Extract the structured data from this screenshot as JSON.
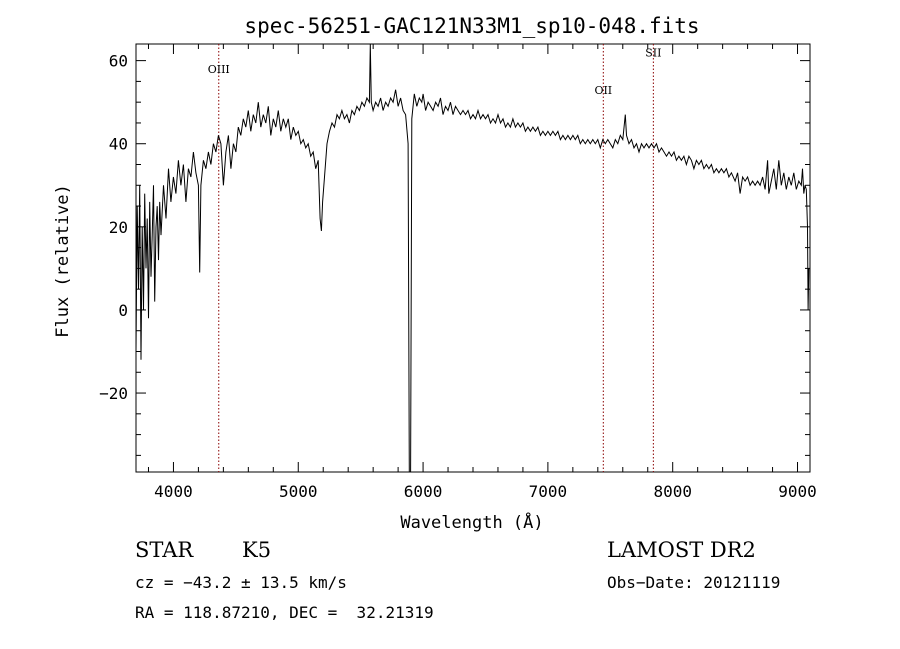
{
  "chart_data": {
    "type": "line",
    "title": "spec-56251-GAC121N33M1_sp10-048.fits",
    "xlabel": "Wavelength (Å)",
    "ylabel": "Flux (relative)",
    "xlim": [
      3700,
      9100
    ],
    "ylim": [
      -39,
      64
    ],
    "xticks": [
      4000,
      5000,
      6000,
      7000,
      8000,
      9000
    ],
    "xtick_labels": [
      "4000",
      "5000",
      "6000",
      "7000",
      "8000",
      "9000"
    ],
    "yticks": [
      -20,
      0,
      20,
      40,
      60
    ],
    "ytick_labels": [
      "−20",
      "0",
      "20",
      "40",
      "60"
    ],
    "grid": false,
    "colors": {
      "spectrum": "#000000",
      "lines": "#8b0000"
    },
    "lines": [
      {
        "label": "OIII",
        "x": 4363,
        "label_y": 57
      },
      {
        "label": "OII",
        "x": 7444,
        "label_y": 52
      },
      {
        "label": "SII",
        "x": 7845,
        "label_y": 61
      }
    ],
    "series": [
      {
        "values": [
          [
            3700,
            -10
          ],
          [
            3710,
            25
          ],
          [
            3720,
            5
          ],
          [
            3730,
            30
          ],
          [
            3740,
            -12
          ],
          [
            3750,
            20
          ],
          [
            3760,
            0
          ],
          [
            3770,
            28
          ],
          [
            3780,
            10
          ],
          [
            3790,
            22
          ],
          [
            3800,
            -2
          ],
          [
            3810,
            26
          ],
          [
            3820,
            8
          ],
          [
            3830,
            18
          ],
          [
            3840,
            30
          ],
          [
            3850,
            2
          ],
          [
            3860,
            20
          ],
          [
            3870,
            25
          ],
          [
            3880,
            12
          ],
          [
            3890,
            26
          ],
          [
            3900,
            18
          ],
          [
            3920,
            30
          ],
          [
            3940,
            22
          ],
          [
            3960,
            34
          ],
          [
            3980,
            26
          ],
          [
            4000,
            32
          ],
          [
            4020,
            28
          ],
          [
            4040,
            36
          ],
          [
            4060,
            30
          ],
          [
            4080,
            35
          ],
          [
            4100,
            26
          ],
          [
            4120,
            34
          ],
          [
            4140,
            32
          ],
          [
            4160,
            38
          ],
          [
            4180,
            33
          ],
          [
            4200,
            30
          ],
          [
            4210,
            9
          ],
          [
            4220,
            30
          ],
          [
            4240,
            36
          ],
          [
            4260,
            34
          ],
          [
            4280,
            38
          ],
          [
            4300,
            35
          ],
          [
            4320,
            40
          ],
          [
            4340,
            38
          ],
          [
            4360,
            42
          ],
          [
            4380,
            40
          ],
          [
            4400,
            30
          ],
          [
            4420,
            38
          ],
          [
            4440,
            42
          ],
          [
            4460,
            34
          ],
          [
            4480,
            40
          ],
          [
            4500,
            38
          ],
          [
            4520,
            44
          ],
          [
            4540,
            42
          ],
          [
            4560,
            46
          ],
          [
            4580,
            44
          ],
          [
            4600,
            48
          ],
          [
            4620,
            43
          ],
          [
            4640,
            47
          ],
          [
            4660,
            45
          ],
          [
            4680,
            50
          ],
          [
            4700,
            44
          ],
          [
            4720,
            47
          ],
          [
            4740,
            45
          ],
          [
            4760,
            49
          ],
          [
            4780,
            42
          ],
          [
            4800,
            46
          ],
          [
            4820,
            44
          ],
          [
            4840,
            48
          ],
          [
            4860,
            43
          ],
          [
            4880,
            46
          ],
          [
            4900,
            44
          ],
          [
            4920,
            46
          ],
          [
            4940,
            41
          ],
          [
            4960,
            44
          ],
          [
            4980,
            42
          ],
          [
            5000,
            43
          ],
          [
            5020,
            40
          ],
          [
            5040,
            41
          ],
          [
            5060,
            39
          ],
          [
            5080,
            40
          ],
          [
            5100,
            37
          ],
          [
            5120,
            38
          ],
          [
            5140,
            34
          ],
          [
            5160,
            36
          ],
          [
            5175,
            22
          ],
          [
            5185,
            19
          ],
          [
            5195,
            26
          ],
          [
            5210,
            32
          ],
          [
            5230,
            40
          ],
          [
            5250,
            43
          ],
          [
            5270,
            45
          ],
          [
            5290,
            44
          ],
          [
            5310,
            47
          ],
          [
            5330,
            46
          ],
          [
            5350,
            48
          ],
          [
            5370,
            46
          ],
          [
            5390,
            47
          ],
          [
            5410,
            45
          ],
          [
            5430,
            48
          ],
          [
            5450,
            47
          ],
          [
            5470,
            49
          ],
          [
            5490,
            48
          ],
          [
            5510,
            50
          ],
          [
            5530,
            49
          ],
          [
            5550,
            51
          ],
          [
            5570,
            50
          ],
          [
            5577,
            64
          ],
          [
            5585,
            50
          ],
          [
            5600,
            48
          ],
          [
            5620,
            50
          ],
          [
            5640,
            49
          ],
          [
            5660,
            51
          ],
          [
            5680,
            48
          ],
          [
            5700,
            50
          ],
          [
            5720,
            49
          ],
          [
            5740,
            51
          ],
          [
            5760,
            50
          ],
          [
            5780,
            53
          ],
          [
            5800,
            49
          ],
          [
            5820,
            51
          ],
          [
            5840,
            48
          ],
          [
            5860,
            47
          ],
          [
            5880,
            40
          ],
          [
            5890,
            -39
          ],
          [
            5900,
            -39
          ],
          [
            5910,
            46
          ],
          [
            5930,
            52
          ],
          [
            5950,
            49
          ],
          [
            5970,
            51
          ],
          [
            5990,
            50
          ],
          [
            6000,
            52
          ],
          [
            6020,
            48
          ],
          [
            6040,
            50
          ],
          [
            6060,
            49
          ],
          [
            6080,
            48
          ],
          [
            6100,
            50
          ],
          [
            6120,
            49
          ],
          [
            6140,
            51
          ],
          [
            6160,
            47
          ],
          [
            6180,
            49
          ],
          [
            6200,
            48
          ],
          [
            6220,
            50
          ],
          [
            6240,
            47
          ],
          [
            6260,
            49
          ],
          [
            6280,
            48
          ],
          [
            6300,
            47
          ],
          [
            6320,
            48
          ],
          [
            6340,
            47
          ],
          [
            6360,
            48
          ],
          [
            6380,
            46
          ],
          [
            6400,
            47
          ],
          [
            6420,
            46
          ],
          [
            6440,
            48
          ],
          [
            6460,
            46
          ],
          [
            6480,
            47
          ],
          [
            6500,
            46
          ],
          [
            6520,
            47
          ],
          [
            6540,
            45
          ],
          [
            6560,
            46
          ],
          [
            6580,
            45
          ],
          [
            6600,
            47
          ],
          [
            6620,
            45
          ],
          [
            6640,
            46
          ],
          [
            6660,
            44
          ],
          [
            6680,
            45
          ],
          [
            6700,
            44
          ],
          [
            6720,
            46
          ],
          [
            6740,
            44
          ],
          [
            6760,
            45
          ],
          [
            6780,
            44
          ],
          [
            6800,
            45
          ],
          [
            6820,
            43
          ],
          [
            6840,
            44
          ],
          [
            6860,
            43
          ],
          [
            6880,
            44
          ],
          [
            6900,
            43
          ],
          [
            6920,
            44
          ],
          [
            6940,
            42
          ],
          [
            6960,
            43
          ],
          [
            6980,
            42
          ],
          [
            7000,
            43
          ],
          [
            7020,
            42
          ],
          [
            7040,
            43
          ],
          [
            7060,
            42
          ],
          [
            7080,
            43
          ],
          [
            7100,
            41
          ],
          [
            7120,
            42
          ],
          [
            7140,
            41
          ],
          [
            7160,
            42
          ],
          [
            7180,
            41
          ],
          [
            7200,
            42
          ],
          [
            7220,
            41
          ],
          [
            7240,
            42
          ],
          [
            7260,
            40
          ],
          [
            7280,
            41
          ],
          [
            7300,
            40
          ],
          [
            7320,
            41
          ],
          [
            7340,
            40
          ],
          [
            7360,
            41
          ],
          [
            7380,
            40
          ],
          [
            7400,
            41
          ],
          [
            7420,
            39
          ],
          [
            7440,
            41
          ],
          [
            7460,
            40
          ],
          [
            7480,
            41
          ],
          [
            7500,
            40
          ],
          [
            7520,
            39
          ],
          [
            7540,
            41
          ],
          [
            7560,
            40
          ],
          [
            7580,
            42
          ],
          [
            7600,
            41
          ],
          [
            7620,
            47
          ],
          [
            7630,
            42
          ],
          [
            7650,
            40
          ],
          [
            7670,
            41
          ],
          [
            7690,
            39
          ],
          [
            7710,
            40
          ],
          [
            7730,
            38
          ],
          [
            7750,
            40
          ],
          [
            7770,
            39
          ],
          [
            7790,
            40
          ],
          [
            7810,
            39
          ],
          [
            7830,
            40
          ],
          [
            7850,
            39
          ],
          [
            7870,
            40
          ],
          [
            7890,
            38
          ],
          [
            7910,
            39
          ],
          [
            7930,
            38
          ],
          [
            7950,
            37
          ],
          [
            7970,
            38
          ],
          [
            7990,
            37
          ],
          [
            8010,
            38
          ],
          [
            8030,
            36
          ],
          [
            8050,
            37
          ],
          [
            8070,
            36
          ],
          [
            8090,
            37
          ],
          [
            8110,
            35
          ],
          [
            8130,
            37
          ],
          [
            8150,
            36
          ],
          [
            8170,
            34
          ],
          [
            8190,
            36
          ],
          [
            8210,
            35
          ],
          [
            8230,
            36
          ],
          [
            8250,
            34
          ],
          [
            8270,
            35
          ],
          [
            8290,
            34
          ],
          [
            8310,
            35
          ],
          [
            8330,
            33
          ],
          [
            8350,
            34
          ],
          [
            8370,
            33
          ],
          [
            8390,
            34
          ],
          [
            8410,
            33
          ],
          [
            8430,
            34
          ],
          [
            8450,
            32
          ],
          [
            8470,
            33
          ],
          [
            8500,
            31
          ],
          [
            8520,
            33
          ],
          [
            8540,
            28
          ],
          [
            8560,
            32
          ],
          [
            8580,
            31
          ],
          [
            8600,
            32
          ],
          [
            8620,
            30
          ],
          [
            8640,
            31
          ],
          [
            8660,
            30
          ],
          [
            8680,
            31
          ],
          [
            8700,
            30
          ],
          [
            8720,
            32
          ],
          [
            8740,
            29
          ],
          [
            8760,
            36
          ],
          [
            8770,
            28
          ],
          [
            8790,
            31
          ],
          [
            8810,
            34
          ],
          [
            8830,
            29
          ],
          [
            8850,
            36
          ],
          [
            8870,
            30
          ],
          [
            8890,
            33
          ],
          [
            8910,
            29
          ],
          [
            8930,
            32
          ],
          [
            8950,
            30
          ],
          [
            8970,
            33
          ],
          [
            8990,
            29
          ],
          [
            9010,
            31
          ],
          [
            9030,
            30
          ],
          [
            9040,
            34
          ],
          [
            9050,
            28
          ],
          [
            9060,
            30
          ],
          [
            9070,
            29
          ],
          [
            9080,
            20
          ],
          [
            9085,
            0
          ],
          [
            9090,
            10
          ]
        ]
      }
    ]
  },
  "info": {
    "class_label": "STAR",
    "subclass_label": "K5",
    "survey_label": "LAMOST DR2",
    "cz_line": "cz = −43.2 ± 13.5 km/s",
    "obs_date_line": "Obs−Date: 20121119",
    "coords_line": "RA = 118.87210, DEC =  32.21319"
  }
}
